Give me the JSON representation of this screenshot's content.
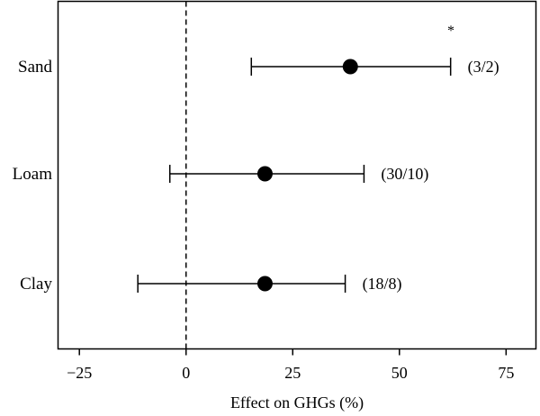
{
  "chart_data": {
    "type": "forest",
    "xlabel": "Effect on GHGs (%)",
    "xlim": [
      -30,
      82
    ],
    "xticks": [
      {
        "value": -25,
        "label": "−25"
      },
      {
        "value": 0,
        "label": "0"
      },
      {
        "value": 25,
        "label": "25"
      },
      {
        "value": 50,
        "label": "50"
      },
      {
        "value": 75,
        "label": "75"
      }
    ],
    "reference_line": 0,
    "grid": false,
    "rows": [
      {
        "category": "Sand",
        "estimate": 38.5,
        "ci_low": 15.3,
        "ci_high": 62.0,
        "annotation": "(3/2)",
        "marker": "*"
      },
      {
        "category": "Loam",
        "estimate": 18.5,
        "ci_low": -3.8,
        "ci_high": 41.7,
        "annotation": "(30/10)",
        "marker": ""
      },
      {
        "category": "Clay",
        "estimate": 18.5,
        "ci_low": -11.3,
        "ci_high": 37.3,
        "annotation": "(18/8)",
        "marker": ""
      }
    ]
  }
}
